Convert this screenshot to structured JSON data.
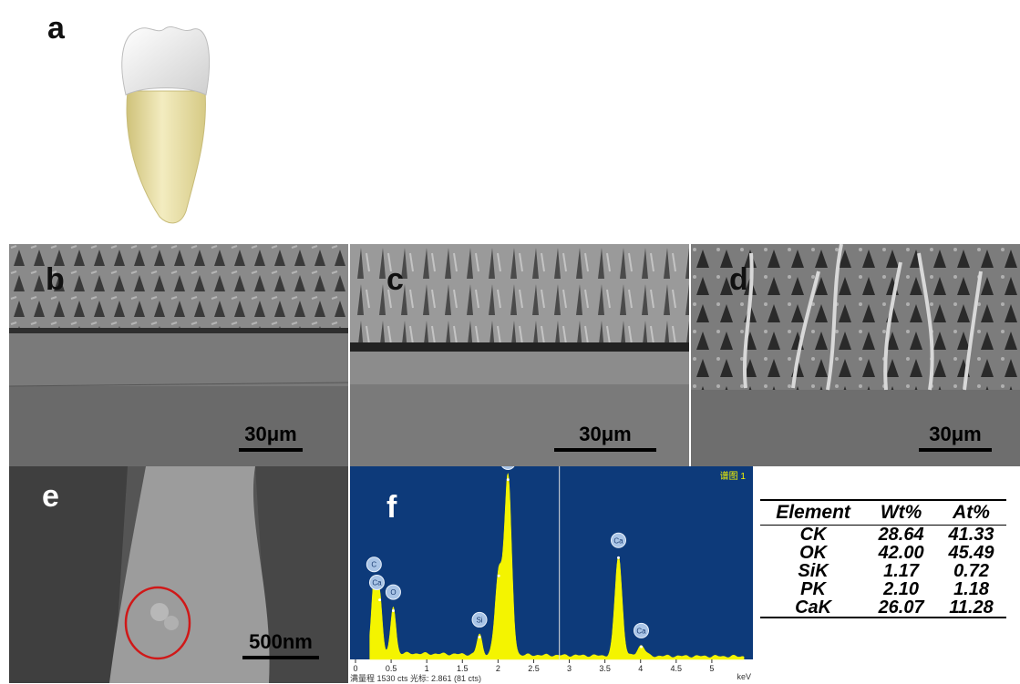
{
  "panels": {
    "a": "a",
    "b": "b",
    "c": "c",
    "d": "d",
    "e": "e",
    "f": "f"
  },
  "scale_bars": {
    "b": "30μm",
    "c": "30μm",
    "d": "30μm",
    "e": "500nm"
  },
  "spectrum": {
    "corner_label": "谱图 1",
    "footer": "满量程 1530 cts 光标: 2.861  (81 cts)",
    "unit": "keV",
    "ticks": [
      "0",
      "0.5",
      "1",
      "1.5",
      "2",
      "2.5",
      "3",
      "3.5",
      "4",
      "4.5",
      "5"
    ],
    "peak_labels": [
      "C",
      "Ca",
      "O",
      "Si",
      "P",
      "Ca",
      "Ca"
    ]
  },
  "chart_data": {
    "type": "area",
    "title": "",
    "xlabel": "keV",
    "ylabel": "",
    "xlim": [
      0,
      5.5
    ],
    "ylim": [
      0,
      1530
    ],
    "x": [
      0.26,
      0.34,
      0.53,
      1.74,
      2.01,
      2.14,
      3.69,
      4.01
    ],
    "series": [
      {
        "values": [
          600,
          480,
          390,
          170,
          680,
          1480,
          830,
          90
        ]
      }
    ],
    "peak_labels": [
      "C",
      "Ca",
      "O",
      "Si",
      "P",
      "P",
      "Ca",
      "Ca"
    ],
    "cursor_x": 2.861,
    "full_scale_cts": 1530,
    "cursor_cts": 81
  },
  "table": {
    "headers": [
      "Element",
      "Wt%",
      "At%"
    ],
    "rows": [
      [
        "CK",
        "28.64",
        "41.33"
      ],
      [
        "OK",
        "42.00",
        "45.49"
      ],
      [
        "SiK",
        "1.17",
        "0.72"
      ],
      [
        "PK",
        "2.10",
        "1.18"
      ],
      [
        "CaK",
        "26.07",
        "11.28"
      ]
    ]
  },
  "colors": {
    "enamel": "#f2f2f2",
    "root": "#ece3a6",
    "resin_blue": "#8fd8ee",
    "adhesive_pink": "#e8b8d8",
    "spectrum_bg": "#0d3a7a",
    "spectrum_fill": "#f4f400",
    "circle": "#d01818"
  }
}
